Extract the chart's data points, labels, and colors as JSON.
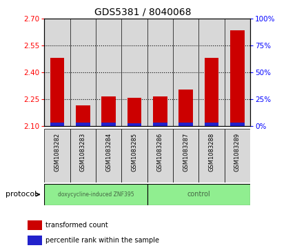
{
  "title": "GDS5381 / 8040068",
  "samples": [
    "GSM1083282",
    "GSM1083283",
    "GSM1083284",
    "GSM1083285",
    "GSM1083286",
    "GSM1083287",
    "GSM1083288",
    "GSM1083289"
  ],
  "transformed_counts": [
    2.48,
    2.215,
    2.265,
    2.258,
    2.267,
    2.305,
    2.48,
    2.635
  ],
  "percentile_ranks": [
    3.5,
    3.5,
    3.5,
    3.0,
    3.5,
    3.5,
    3.5,
    3.5
  ],
  "ylim_left": [
    2.1,
    2.7
  ],
  "yticks_left": [
    2.1,
    2.25,
    2.4,
    2.55,
    2.7
  ],
  "ylim_right": [
    0,
    100
  ],
  "yticks_right": [
    0,
    25,
    50,
    75,
    100
  ],
  "bar_width": 0.55,
  "red_color": "#cc0000",
  "blue_color": "#2222cc",
  "protocol_groups": [
    {
      "label": "doxycycline-induced ZNF395",
      "start": 0,
      "end": 4,
      "color": "#90ee90"
    },
    {
      "label": "control",
      "start": 4,
      "end": 8,
      "color": "#90ee90"
    }
  ],
  "protocol_label": "protocol",
  "legend_red": "transformed count",
  "legend_blue": "percentile rank within the sample",
  "col_bg_color": "#d8d8d8",
  "plot_bg": "#ffffff",
  "dotted_lines": [
    2.25,
    2.4,
    2.55
  ],
  "base": 2.1
}
